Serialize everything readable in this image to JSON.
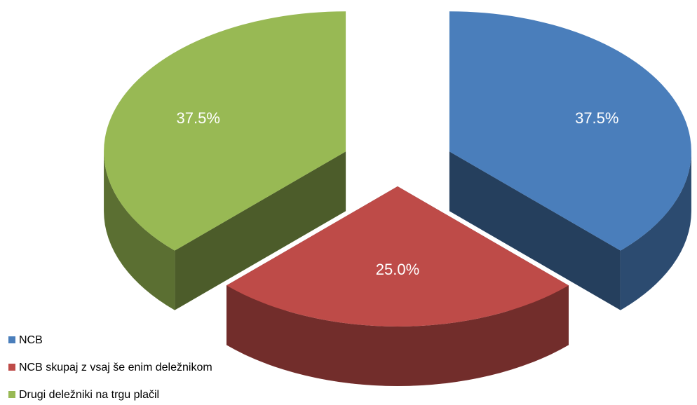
{
  "chart_data": {
    "type": "pie",
    "categories": [
      "NCB",
      "NCB skupaj z vsaj še enim deležnikom",
      "Drugi deležniki na trgu plačil"
    ],
    "values": [
      37.5,
      25.0,
      37.5
    ],
    "value_labels": [
      "37.5%",
      "25.0%",
      "37.5%"
    ],
    "colors": [
      "#4a7ebb",
      "#be4b48",
      "#98b954"
    ],
    "legend": "bottom-left"
  }
}
